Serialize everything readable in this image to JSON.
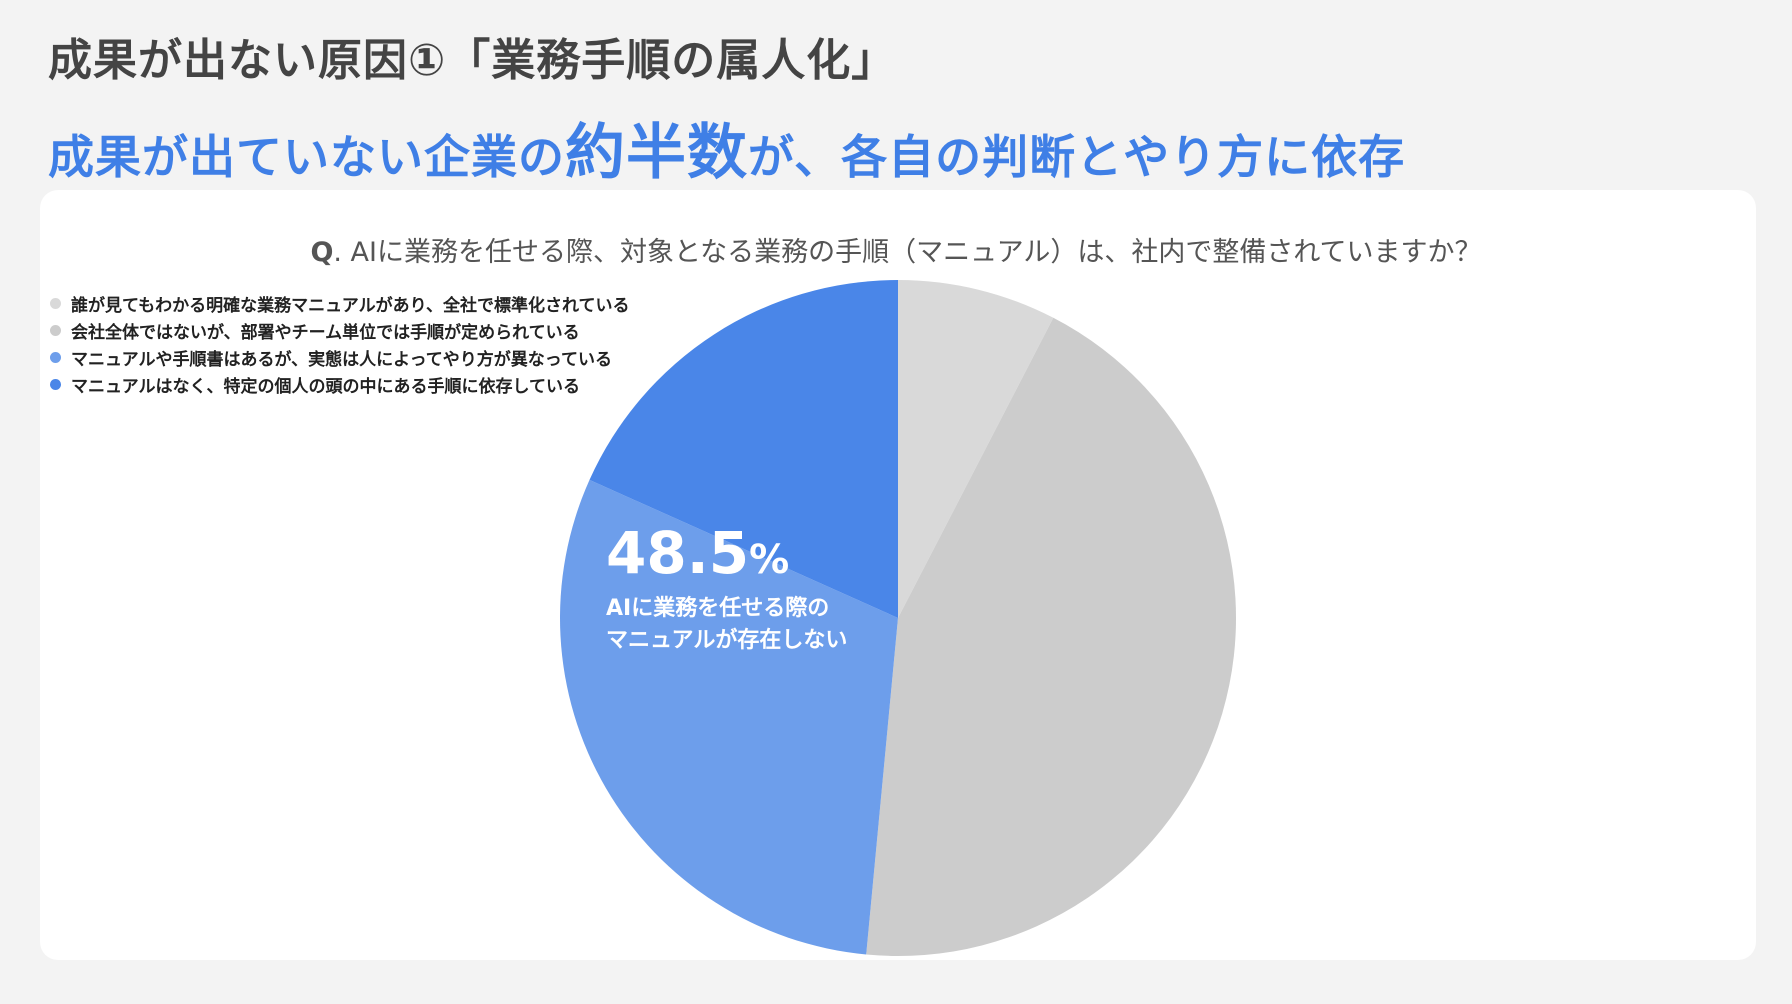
{
  "header": {
    "title": "成果が出ない原因①「業務手順の属人化」",
    "subtitle_pre": "成果が出ていない企業の",
    "subtitle_emph": "約半数",
    "subtitle_post": "が、各自の判断とやり方に依存"
  },
  "question": {
    "prefix": "Q",
    "text": ". AIに業務を任せる際、対象となる業務の手順（マニュアル）は、社内で整備されていますか？"
  },
  "callout": {
    "value": "48.5",
    "unit": "%",
    "line1": "AIに業務を任せる際の",
    "line2": "マニュアルが存在しない"
  },
  "chart_data": {
    "type": "pie",
    "labels": [
      "誰が見てもわかる明確な業務マニュアルがあり、全社で標準化されている",
      "会社全体ではないが、部署やチーム単位では手順が定められている",
      "マニュアルや手順書はあるが、実態は人によってやり方が異なっている",
      "マニュアルはなく、特定の個人の頭の中にある手順に依存している"
    ],
    "values": [
      7.6,
      43.9,
      30.2,
      18.3
    ],
    "colors": [
      "#d9d9d9",
      "#cccccc",
      "#6d9eeb",
      "#4a86e8"
    ],
    "start": "12 o'clock",
    "direction": "clockwise",
    "legend_position": "top-left"
  }
}
